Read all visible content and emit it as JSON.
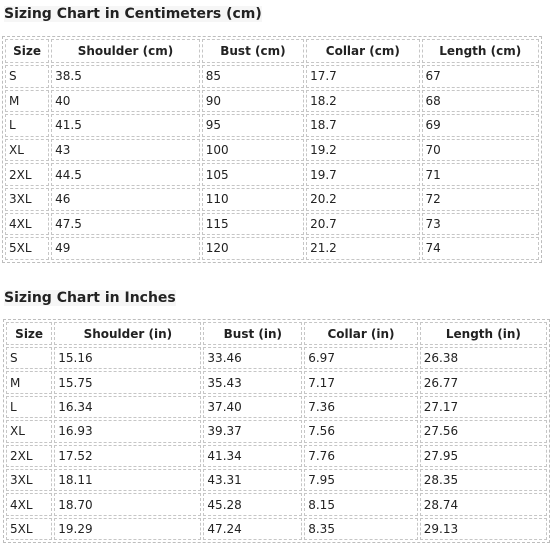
{
  "cm_chart": {
    "title": "Sizing Chart in Centimeters (cm)",
    "headers": [
      "Size",
      "Shoulder (cm)",
      "Bust (cm)",
      "Collar (cm)",
      "Length (cm)"
    ],
    "rows": [
      [
        "S",
        "38.5",
        "85",
        "17.7",
        "67"
      ],
      [
        "M",
        "40",
        "90",
        "18.2",
        "68"
      ],
      [
        "L",
        "41.5",
        "95",
        "18.7",
        "69"
      ],
      [
        "XL",
        "43",
        "100",
        "19.2",
        "70"
      ],
      [
        "2XL",
        "44.5",
        "105",
        "19.7",
        "71"
      ],
      [
        "3XL",
        "46",
        "110",
        "20.2",
        "72"
      ],
      [
        "4XL",
        "47.5",
        "115",
        "20.7",
        "73"
      ],
      [
        "5XL",
        "49",
        "120",
        "21.2",
        "74"
      ]
    ]
  },
  "in_chart": {
    "title": "Sizing Chart in Inches",
    "headers": [
      "Size",
      "Shoulder (in)",
      "Bust (in)",
      "Collar (in)",
      "Length (in)"
    ],
    "rows": [
      [
        "S",
        "15.16",
        "33.46",
        "6.97",
        "26.38"
      ],
      [
        "M",
        "15.75",
        "35.43",
        "7.17",
        "26.77"
      ],
      [
        "L",
        "16.34",
        "37.40",
        "7.36",
        "27.17"
      ],
      [
        "XL",
        "16.93",
        "39.37",
        "7.56",
        "27.56"
      ],
      [
        "2XL",
        "17.52",
        "41.34",
        "7.76",
        "27.95"
      ],
      [
        "3XL",
        "18.11",
        "43.31",
        "7.95",
        "28.35"
      ],
      [
        "4XL",
        "18.70",
        "45.28",
        "8.15",
        "28.74"
      ],
      [
        "5XL",
        "19.29",
        "47.24",
        "8.35",
        "29.13"
      ]
    ]
  }
}
